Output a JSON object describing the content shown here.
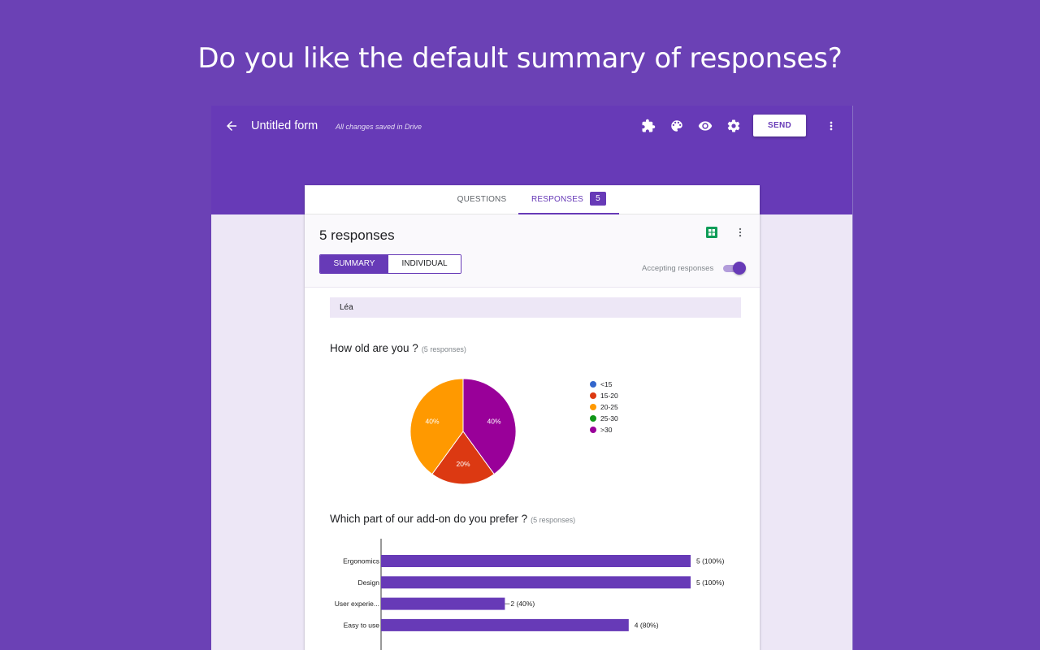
{
  "headline": "Do you like the default summary of responses?",
  "app": {
    "form_title": "Untitled form",
    "save_status": "All changes saved in Drive",
    "send_label": "SEND",
    "icons": [
      "back-arrow-icon",
      "addons-puzzle-icon",
      "palette-icon",
      "preview-eye-icon",
      "settings-gear-icon",
      "more-vert-icon"
    ],
    "colors": {
      "brand": "#673ab7",
      "background": "#6b41b5",
      "page": "#ede7f6"
    }
  },
  "tabs": {
    "questions": "QUESTIONS",
    "responses": "RESPONSES",
    "response_count": "5",
    "active": "RESPONSES"
  },
  "responses": {
    "title": "5 responses",
    "summary_label": "SUMMARY",
    "individual_label": "INDIVIDUAL",
    "active_view": "SUMMARY",
    "accepting_label": "Accepting responses",
    "accepting_on": true,
    "respondent_name": "Léa"
  },
  "questions": [
    {
      "title": "How old are you ?",
      "sub": "(5 responses)"
    },
    {
      "title": "Which part of our add-on do you prefer ?",
      "sub": "(5 responses)"
    }
  ],
  "chart_data": [
    {
      "type": "pie",
      "legend_position": "right",
      "categories": [
        "<15",
        "15-20",
        "20-25",
        "25-30",
        ">30"
      ],
      "values": [
        0,
        20,
        40,
        0,
        40
      ],
      "labels": [
        "",
        "20%",
        "40%",
        "",
        "40%"
      ],
      "colors": [
        "#3366cc",
        "#dc3912",
        "#ff9900",
        "#109618",
        "#990099"
      ]
    },
    {
      "type": "bar",
      "orientation": "horizontal",
      "categories": [
        "Ergonomics",
        "Design",
        "User experie...",
        "Easy to use"
      ],
      "values": [
        5,
        5,
        2,
        4
      ],
      "value_labels": [
        "5 (100%)",
        "5 (100%)",
        "2 (40%)",
        "4 (80%)"
      ],
      "xlim": [
        0,
        5
      ],
      "color": "#673ab7"
    }
  ]
}
